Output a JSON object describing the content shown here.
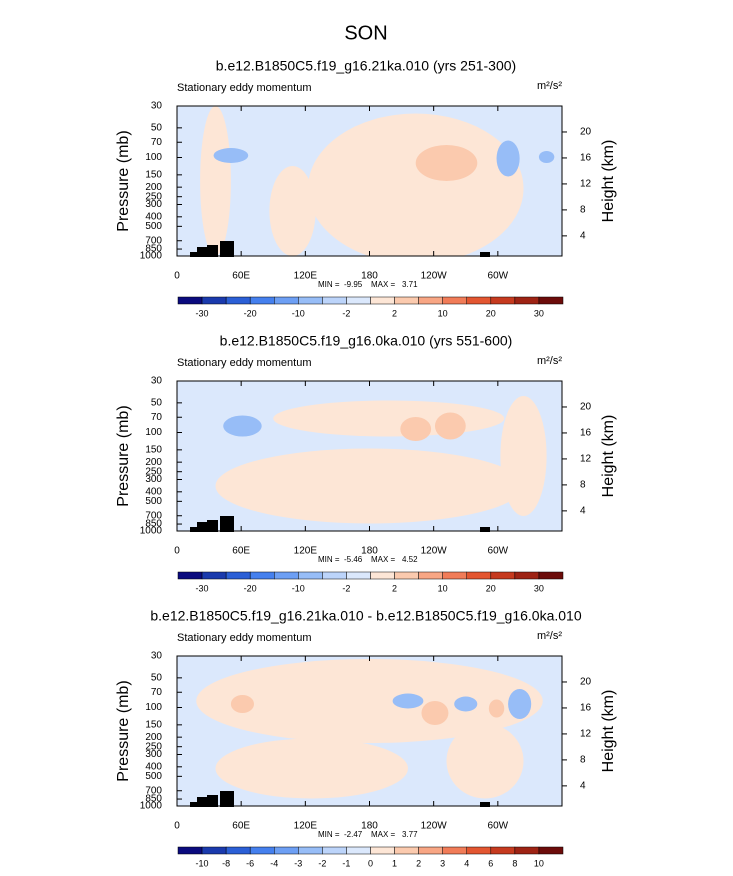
{
  "title": "SON",
  "colorbar_colors": [
    "#0b0b7e",
    "#1a3aad",
    "#2b5fd6",
    "#4580ee",
    "#6d9ff4",
    "#97bdf7",
    "#bcd4fa",
    "#dbe8fc",
    "#fde6d6",
    "#fbcaae",
    "#f8a684",
    "#f17c58",
    "#e35631",
    "#c63a1f",
    "#9e2314",
    "#6c0c0a"
  ],
  "panels": [
    {
      "title": "b.e12.B1850C5.f19_g16.21ka.010 (yrs 251-300)",
      "left_label": "Stationary eddy momentum",
      "units": "m²/s²",
      "y_label": "Pressure (mb)",
      "y2_label": "Height (km)",
      "ylim": [
        1000,
        30
      ],
      "yticks": [
        30,
        50,
        70,
        100,
        150,
        200,
        250,
        300,
        400,
        500,
        700,
        850,
        1000
      ],
      "y2lim": [
        0.9,
        24
      ],
      "y2ticks": [
        4,
        8,
        12,
        16,
        20
      ],
      "xlim": [
        0,
        360
      ],
      "xticks": [
        0,
        {
          "value": 60,
          "label": "60E"
        },
        {
          "value": 120,
          "label": "120E"
        },
        180,
        {
          "value": 240,
          "label": "120W"
        },
        {
          "value": 300,
          "label": "60W"
        }
      ],
      "min_label": "MIN =",
      "min": -9.95,
      "max_label": "MAX =",
      "max": 3.71,
      "colorbar_levels": [
        -30,
        -20,
        -10,
        -2,
        2,
        10,
        20,
        30
      ]
    },
    {
      "title": "b.e12.B1850C5.f19_g16.0ka.010 (yrs 551-600)",
      "left_label": "Stationary eddy momentum",
      "units": "m²/s²",
      "y_label": "Pressure (mb)",
      "y2_label": "Height (km)",
      "ylim": [
        1000,
        30
      ],
      "yticks": [
        30,
        50,
        70,
        100,
        150,
        200,
        250,
        300,
        400,
        500,
        700,
        850,
        1000
      ],
      "y2lim": [
        0.9,
        24
      ],
      "y2ticks": [
        4,
        8,
        12,
        16,
        20
      ],
      "xlim": [
        0,
        360
      ],
      "xticks": [
        0,
        {
          "value": 60,
          "label": "60E"
        },
        {
          "value": 120,
          "label": "120E"
        },
        180,
        {
          "value": 240,
          "label": "120W"
        },
        {
          "value": 300,
          "label": "60W"
        }
      ],
      "min_label": "MIN =",
      "min": -5.46,
      "max_label": "MAX =",
      "max": 4.52,
      "colorbar_levels": [
        -30,
        -20,
        -10,
        -2,
        2,
        10,
        20,
        30
      ]
    },
    {
      "title": "b.e12.B1850C5.f19_g16.21ka.010 - b.e12.B1850C5.f19_g16.0ka.010",
      "left_label": "Stationary eddy momentum",
      "units": "m²/s²",
      "y_label": "Pressure (mb)",
      "y2_label": "Height (km)",
      "ylim": [
        1000,
        30
      ],
      "yticks": [
        30,
        50,
        70,
        100,
        150,
        200,
        250,
        300,
        400,
        500,
        700,
        850,
        1000
      ],
      "y2lim": [
        0.9,
        24
      ],
      "y2ticks": [
        4,
        8,
        12,
        16,
        20
      ],
      "xlim": [
        0,
        360
      ],
      "xticks": [
        0,
        {
          "value": 60,
          "label": "60E"
        },
        {
          "value": 120,
          "label": "120E"
        },
        180,
        {
          "value": 240,
          "label": "120W"
        },
        {
          "value": 300,
          "label": "60W"
        }
      ],
      "min_label": "MIN =",
      "min": -2.47,
      "max_label": "MAX =",
      "max": 3.77,
      "colorbar_levels": [
        -10,
        -8,
        -6,
        -4,
        -3,
        -2,
        -1,
        0,
        1,
        2,
        3,
        4,
        6,
        8,
        10
      ]
    }
  ]
}
